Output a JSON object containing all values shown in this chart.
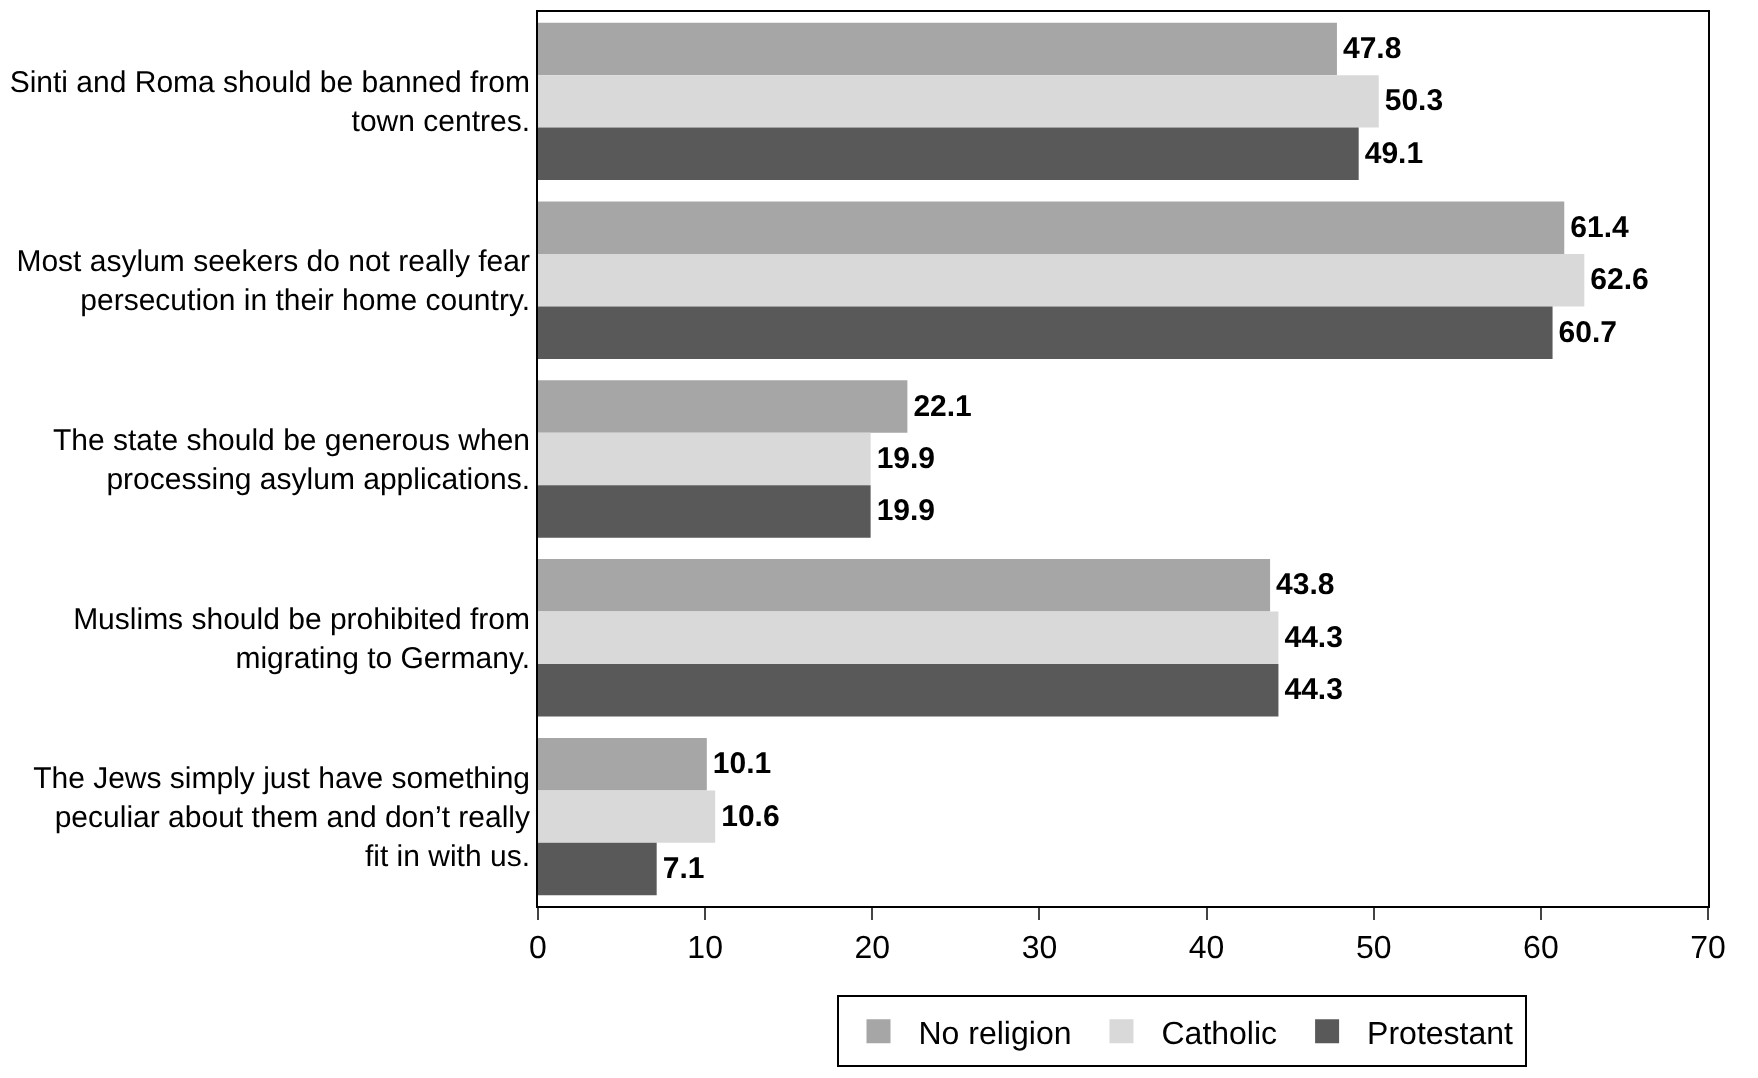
{
  "chart_data": {
    "type": "bar",
    "orientation": "horizontal",
    "categories": [
      "Sinti and Roma should be banned from town centres.",
      "Most asylum seekers do not really fear persecution in their home country.",
      "The state should be generous when processing asylum applications.",
      "Muslims should be prohibited from migrating to Germany.",
      "The Jews simply just have something peculiar about them and don’t really fit in with us."
    ],
    "series": [
      {
        "name": "No religion",
        "color": "#a6a6a6",
        "values": [
          47.8,
          61.4,
          22.1,
          43.8,
          10.1
        ]
      },
      {
        "name": "Catholic",
        "color": "#d9d9d9",
        "values": [
          50.3,
          62.6,
          19.9,
          44.3,
          10.6
        ]
      },
      {
        "name": "Protestant",
        "color": "#595959",
        "values": [
          49.1,
          60.7,
          19.9,
          44.3,
          7.1
        ]
      }
    ],
    "xlim": [
      0,
      70
    ],
    "xticks": [
      0,
      10,
      20,
      30,
      40,
      50,
      60,
      70
    ],
    "data_labels": true,
    "legend": "bottom"
  }
}
